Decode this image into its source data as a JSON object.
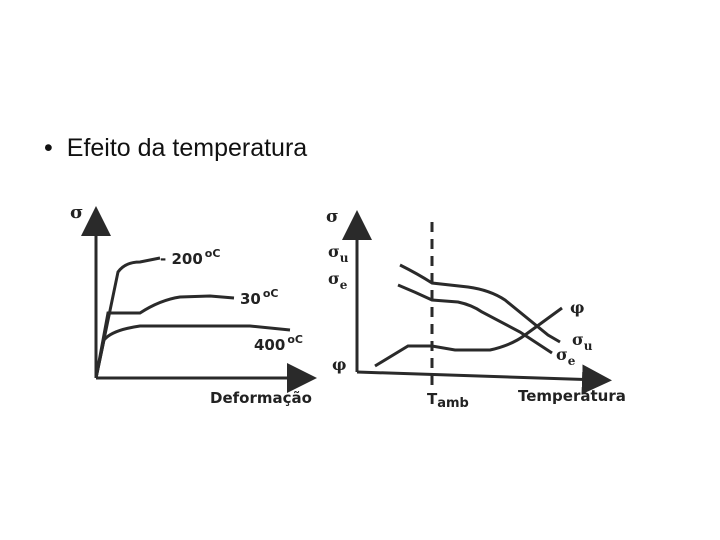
{
  "slide": {
    "bullet_symbol": "•",
    "bullet_text": "Efeito da temperatura"
  },
  "left_chart": {
    "y_axis_label": "σ",
    "x_axis_label": "Deformação",
    "curves": [
      {
        "name": "- 200",
        "unit": "oC"
      },
      {
        "name": "30",
        "unit": "oC"
      },
      {
        "name": "400",
        "unit": "oC"
      }
    ]
  },
  "right_chart": {
    "y_axis_label": "σ",
    "y_label_su": "σu",
    "y_label_se": "σe",
    "y_label_phi": "φ",
    "x_marker_label": "Tamb",
    "x_axis_label": "Temperatura",
    "curve_phi": "φ",
    "curve_su": "σu",
    "curve_se": "σe"
  },
  "colors": {
    "line": "#2a2a2a",
    "text": "#111111",
    "background": "#ffffff"
  }
}
